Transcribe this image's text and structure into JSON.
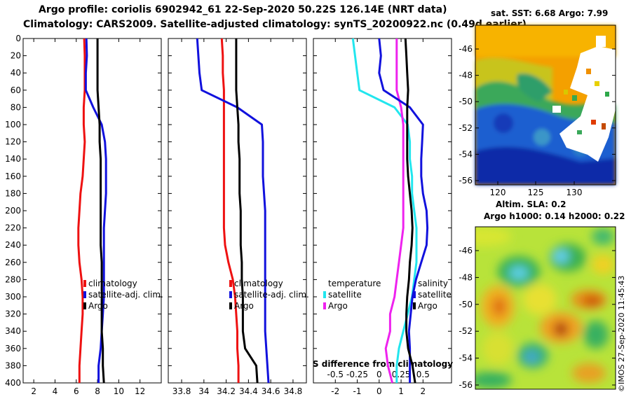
{
  "header": {
    "line1": "Argo profile: coriolis 6902942_61 22-Sep-2020 50.22S 126.14E (NRT data)",
    "line2": "Climatology: CARS2009. Satellite-adjusted climatology: synTS_20200922.nc (0.49d earlier)"
  },
  "depth_axis": {
    "ylim": [
      0,
      400
    ],
    "ticks": [
      0,
      20,
      40,
      60,
      80,
      100,
      120,
      140,
      160,
      180,
      200,
      220,
      240,
      260,
      280,
      300,
      320,
      340,
      360,
      380,
      400
    ]
  },
  "colors": {
    "climatology": "#ee1111",
    "satellite": "#1111dd",
    "argo": "#000000",
    "sat_salinity": "#22e6ee",
    "sat_temperature": "#ee22ee"
  },
  "chart_data": [
    {
      "type": "line",
      "id": "temperature",
      "xlim": [
        1,
        14
      ],
      "xticks": [
        2,
        4,
        6,
        8,
        10,
        12
      ],
      "ylim": [
        0,
        400
      ],
      "legend": {
        "entries": [
          "climatology",
          "satellite-adj. clim.",
          "Argo"
        ],
        "placement": "right-middle"
      },
      "series": [
        {
          "name": "climatology",
          "color": "#ee1111",
          "x": [
            6.75,
            6.8,
            6.8,
            6.8,
            6.7,
            6.7,
            6.8,
            6.7,
            6.6,
            6.4,
            6.3,
            6.2,
            6.2,
            6.3,
            6.5,
            6.6,
            6.6,
            6.5,
            6.4,
            6.3,
            6.3
          ],
          "depth": [
            0,
            20,
            40,
            60,
            80,
            100,
            120,
            140,
            160,
            180,
            200,
            220,
            240,
            260,
            280,
            300,
            320,
            340,
            360,
            380,
            400
          ]
        },
        {
          "name": "satellite-adj. clim.",
          "color": "#1111dd",
          "x": [
            6.95,
            7.0,
            6.9,
            6.9,
            7.6,
            8.4,
            8.7,
            8.8,
            8.8,
            8.8,
            8.7,
            8.6,
            8.6,
            8.6,
            8.6,
            8.6,
            8.5,
            8.4,
            8.3,
            8.1,
            8.1
          ],
          "depth": [
            0,
            20,
            40,
            60,
            80,
            100,
            120,
            140,
            160,
            180,
            200,
            220,
            240,
            260,
            280,
            300,
            320,
            340,
            360,
            380,
            400
          ]
        },
        {
          "name": "Argo",
          "color": "#000000",
          "x": [
            8.0,
            8.0,
            8.0,
            8.0,
            8.1,
            8.2,
            8.2,
            8.3,
            8.3,
            8.3,
            8.3,
            8.3,
            8.3,
            8.4,
            8.4,
            8.4,
            8.4,
            8.4,
            8.5,
            8.5,
            8.6
          ],
          "depth": [
            0,
            20,
            40,
            60,
            80,
            100,
            120,
            140,
            160,
            180,
            200,
            220,
            240,
            260,
            280,
            300,
            320,
            340,
            360,
            380,
            400
          ]
        }
      ]
    },
    {
      "type": "line",
      "id": "salinity",
      "xlim": [
        33.68,
        34.92
      ],
      "xticks": [
        33.8,
        34,
        34.2,
        34.4,
        34.6,
        34.8
      ],
      "ylim": [
        0,
        400
      ],
      "legend": {
        "entries": [
          "climatology",
          "satellite-adj. clim.",
          "Argo"
        ],
        "placement": "right-middle"
      },
      "series": [
        {
          "name": "climatology",
          "color": "#ee1111",
          "x": [
            34.16,
            34.17,
            34.17,
            34.18,
            34.18,
            34.18,
            34.18,
            34.18,
            34.18,
            34.18,
            34.18,
            34.18,
            34.19,
            34.22,
            34.26,
            34.28,
            34.29,
            34.3,
            34.3,
            34.31,
            34.31
          ],
          "depth": [
            0,
            20,
            40,
            60,
            80,
            100,
            120,
            140,
            160,
            180,
            200,
            220,
            240,
            260,
            280,
            300,
            320,
            340,
            360,
            380,
            400
          ]
        },
        {
          "name": "satellite-adj. clim.",
          "color": "#1111dd",
          "x": [
            33.94,
            33.95,
            33.96,
            33.98,
            34.3,
            34.52,
            34.53,
            34.53,
            34.53,
            34.54,
            34.55,
            34.55,
            34.55,
            34.55,
            34.55,
            34.55,
            34.55,
            34.55,
            34.56,
            34.57,
            34.58
          ],
          "depth": [
            0,
            20,
            40,
            60,
            80,
            100,
            120,
            140,
            160,
            180,
            200,
            220,
            240,
            260,
            280,
            300,
            320,
            340,
            360,
            380,
            400
          ]
        },
        {
          "name": "Argo",
          "color": "#000000",
          "x": [
            34.29,
            34.29,
            34.29,
            34.29,
            34.3,
            34.31,
            34.31,
            34.32,
            34.32,
            34.32,
            34.33,
            34.33,
            34.33,
            34.34,
            34.34,
            34.35,
            34.35,
            34.35,
            34.37,
            34.47,
            34.48
          ],
          "depth": [
            0,
            20,
            40,
            60,
            80,
            100,
            120,
            140,
            160,
            180,
            200,
            220,
            240,
            260,
            280,
            300,
            320,
            340,
            360,
            380,
            400
          ]
        }
      ]
    },
    {
      "type": "line",
      "id": "difference",
      "xlim_temperature": [
        -3,
        3.3
      ],
      "xticks_temperature": [
        -2,
        -1,
        0,
        1,
        2
      ],
      "xlim_salinity": [
        -0.75,
        0.825
      ],
      "xticks_salinity": [
        -0.5,
        -0.25,
        0,
        0.25,
        0.5
      ],
      "xlabel": "S difference from climatology",
      "ylim": [
        0,
        400
      ],
      "legend": {
        "groups": [
          "temperature",
          "salinity"
        ],
        "entries": [
          "satellite",
          "Argo"
        ],
        "placement": "right-middle"
      },
      "series": [
        {
          "name": "temperature satellite",
          "color": "#22e6ee",
          "x": [
            -1.2,
            -1.1,
            -1.0,
            -0.9,
            0.7,
            1.3,
            1.4,
            1.4,
            1.5,
            1.5,
            1.6,
            1.7,
            1.7,
            1.7,
            1.6,
            1.5,
            1.3,
            1.1,
            0.9,
            0.8,
            0.8
          ],
          "depth": [
            0,
            20,
            40,
            60,
            80,
            100,
            120,
            140,
            160,
            180,
            200,
            220,
            240,
            260,
            280,
            300,
            320,
            340,
            360,
            380,
            400
          ]
        },
        {
          "name": "temperature Argo",
          "color": "#ee22ee",
          "x": [
            0.8,
            0.8,
            0.8,
            0.8,
            1.0,
            1.1,
            1.1,
            1.1,
            1.1,
            1.1,
            1.1,
            1.1,
            1.0,
            0.9,
            0.8,
            0.7,
            0.5,
            0.5,
            0.3,
            0.4,
            0.6
          ],
          "depth": [
            0,
            20,
            40,
            60,
            80,
            100,
            120,
            140,
            160,
            180,
            200,
            220,
            240,
            260,
            280,
            300,
            320,
            340,
            360,
            380,
            400
          ]
        },
        {
          "name": "salinity satellite",
          "color": "#1111dd",
          "x": [
            0.0,
            0.02,
            0.0,
            0.05,
            0.35,
            0.5,
            0.49,
            0.48,
            0.48,
            0.5,
            0.54,
            0.55,
            0.54,
            0.48,
            0.42,
            0.38,
            0.36,
            0.34,
            0.35,
            0.35,
            0.35
          ],
          "depth": [
            0,
            20,
            40,
            60,
            80,
            100,
            120,
            140,
            160,
            180,
            200,
            220,
            240,
            260,
            280,
            300,
            320,
            340,
            360,
            380,
            400
          ]
        },
        {
          "name": "salinity Argo",
          "color": "#000000",
          "x": [
            0.3,
            0.31,
            0.32,
            0.33,
            0.32,
            0.32,
            0.32,
            0.32,
            0.33,
            0.35,
            0.37,
            0.38,
            0.37,
            0.35,
            0.34,
            0.32,
            0.31,
            0.31,
            0.33,
            0.38,
            0.41
          ],
          "depth": [
            0,
            20,
            40,
            60,
            80,
            100,
            120,
            140,
            160,
            180,
            200,
            220,
            240,
            260,
            280,
            300,
            320,
            340,
            360,
            380,
            400
          ]
        }
      ]
    }
  ],
  "sst_map": {
    "title": "sat. SST: 6.68 Argo: 7.99",
    "lon_ticks": [
      "120",
      "125",
      "130"
    ],
    "lat_ticks": [
      "-46",
      "-48",
      "-50",
      "-52",
      "-54",
      "-56"
    ]
  },
  "sla_map": {
    "title_line1": "Altim. SLA: 0.2",
    "title_line2": "Argo h1000: 0.14 h2000: 0.22",
    "lat_ticks": [
      "-46",
      "-48",
      "-50",
      "-52",
      "-54",
      "-56"
    ]
  },
  "credit": "©IMOS 27-Sep-2020 11:45:43"
}
